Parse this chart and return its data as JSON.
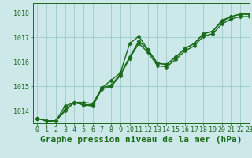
{
  "background_color": "#cce8e8",
  "grid_color": "#99cccc",
  "line_color": "#1a6b1a",
  "xlabel": "Graphe pression niveau de la mer (hPa)",
  "xlim": [
    -0.5,
    23
  ],
  "ylim": [
    1013.5,
    1018.4
  ],
  "yticks": [
    1014,
    1015,
    1016,
    1017,
    1018
  ],
  "xticks": [
    0,
    1,
    2,
    3,
    4,
    5,
    6,
    7,
    8,
    9,
    10,
    11,
    12,
    13,
    14,
    15,
    16,
    17,
    18,
    19,
    20,
    21,
    22,
    23
  ],
  "series1": [
    1013.7,
    1013.6,
    1013.6,
    1014.0,
    1014.35,
    1014.25,
    1014.25,
    1014.95,
    1015.05,
    1015.5,
    1016.2,
    1016.85,
    1016.5,
    1015.95,
    1015.9,
    1016.2,
    1016.55,
    1016.75,
    1017.15,
    1017.25,
    1017.65,
    1017.85,
    1017.95,
    1017.95
  ],
  "series2": [
    1013.7,
    1013.6,
    1013.6,
    1014.05,
    1014.35,
    1014.25,
    1014.2,
    1014.9,
    1015.0,
    1015.45,
    1016.15,
    1016.75,
    1016.4,
    1015.85,
    1015.8,
    1016.1,
    1016.45,
    1016.65,
    1017.05,
    1017.15,
    1017.55,
    1017.75,
    1017.85,
    1017.85
  ],
  "series3": [
    1013.7,
    1013.6,
    1013.6,
    1014.2,
    1014.35,
    1014.35,
    1014.3,
    1014.95,
    1015.25,
    1015.55,
    1016.75,
    1017.05,
    1016.5,
    1015.95,
    1015.9,
    1016.2,
    1016.55,
    1016.75,
    1017.15,
    1017.25,
    1017.7,
    1017.85,
    1017.95,
    1017.95
  ],
  "marker": "D",
  "markersize": 2.5,
  "linewidth": 1.0,
  "xlabel_fontsize": 8,
  "tick_fontsize": 6,
  "xlabel_color": "#1a6b1a",
  "tick_color": "#1a6b1a",
  "spine_color": "#1a6b1a"
}
